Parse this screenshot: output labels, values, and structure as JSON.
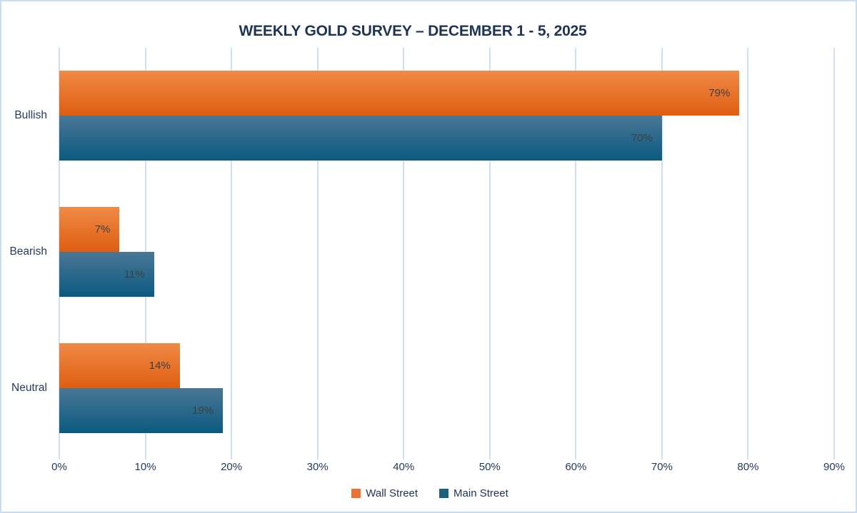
{
  "chart": {
    "title": "WEEKLY GOLD SURVEY – DECEMBER 1 - 5, 2025"
  },
  "chart_data": {
    "type": "bar",
    "orientation": "horizontal",
    "title": "WEEKLY GOLD SURVEY – DECEMBER 1 - 5, 2025",
    "xlabel": "",
    "ylabel": "",
    "categories": [
      "Bullish",
      "Bearish",
      "Neutral"
    ],
    "series": [
      {
        "name": "Wall Street",
        "values": [
          79,
          7,
          14
        ],
        "color_top": "#f08a46",
        "color_bottom": "#de5e11",
        "swatch_color": "#ed7231"
      },
      {
        "name": "Main Street",
        "values": [
          70,
          11,
          19
        ],
        "color_top": "#4a7795",
        "color_bottom": "#0a5a80",
        "swatch_color": "#1c607f"
      }
    ],
    "data_labels": [
      "79%",
      "70%",
      "7%",
      "11%",
      "14%",
      "19%"
    ],
    "value_suffix": "%",
    "x_ticks": [
      0,
      10,
      20,
      30,
      40,
      50,
      60,
      70,
      80,
      90
    ],
    "x_tick_labels": [
      "0%",
      "10%",
      "20%",
      "30%",
      "40%",
      "50%",
      "60%",
      "70%",
      "80%",
      "90%"
    ],
    "xlim": [
      0,
      90
    ],
    "grid": "vertical",
    "legend_position": "bottom"
  },
  "colors": {
    "background": "#ffffff",
    "frame_border": "#c9ddf1",
    "gridline": "#cfe0f4",
    "title_text": "#1e3452",
    "axis_text": "#243c5a",
    "data_label_text": "#3a4047"
  }
}
